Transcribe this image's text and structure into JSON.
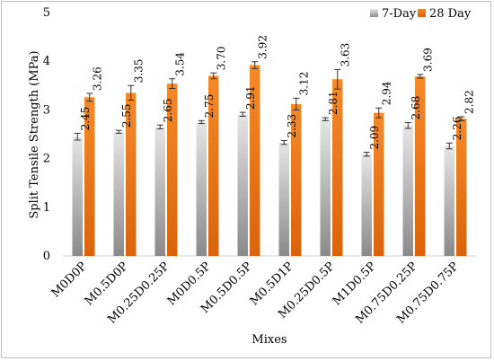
{
  "chart_data": {
    "type": "bar",
    "title": "",
    "xlabel": "Mixes",
    "ylabel": "Split Tensile Strength (MPa)",
    "ylim": [
      0,
      5
    ],
    "yticks": [
      "0",
      "1",
      "2",
      "3",
      "4",
      "5"
    ],
    "grid": false,
    "legend_position": "top-right",
    "categories": [
      "M0D0P",
      "M0.5D0P",
      "M0.25D0.25P",
      "M0D0.5P",
      "M0.5D0.5P",
      "M0.5D1P",
      "M0.25D0.5P",
      "M1D0.5P",
      "M0.75D0.25P",
      "M0.75D0.75P"
    ],
    "series": [
      {
        "name": "7-Day",
        "color": "#b3b3b3",
        "values": [
          2.45,
          2.55,
          2.65,
          2.75,
          2.91,
          2.33,
          2.81,
          2.09,
          2.68,
          2.26
        ],
        "labels": [
          "2.45",
          "2.55",
          "2.65",
          "2.75",
          "2.91",
          "2.33",
          "2.81",
          "2.09",
          "2.68",
          "2.26"
        ],
        "errors": [
          0.07,
          0.03,
          0.04,
          0.03,
          0.04,
          0.04,
          0.03,
          0.04,
          0.06,
          0.06
        ]
      },
      {
        "name": "28 Day",
        "color": "#f07c1c",
        "values": [
          3.26,
          3.35,
          3.54,
          3.7,
          3.92,
          3.12,
          3.63,
          2.94,
          3.69,
          2.82
        ],
        "labels": [
          "3.26",
          "3.35",
          "3.54",
          "3.70",
          "3.92",
          "3.12",
          "3.63",
          "2.94",
          "3.69",
          "2.82"
        ],
        "errors": [
          0.08,
          0.15,
          0.1,
          0.06,
          0.07,
          0.12,
          0.2,
          0.1,
          0.04,
          0.04
        ]
      }
    ]
  }
}
